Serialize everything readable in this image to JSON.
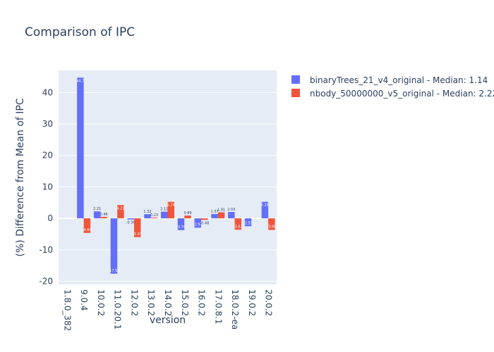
{
  "chart_data": {
    "type": "bar",
    "title": "Comparison of IPC",
    "xlabel": "version",
    "ylabel": "(%) Difference from Mean of IPC",
    "ylim": [
      -21,
      47
    ],
    "yticks": [
      -20,
      -10,
      0,
      10,
      20,
      30,
      40
    ],
    "grid": true,
    "legend_position": "top-right",
    "categories": [
      "1.8.0_382",
      "9.0.4",
      "10.0.2",
      "11.0.20.1",
      "12.0.2",
      "13.0.2",
      "14.0.2",
      "15.0.2",
      "16.0.2",
      "17.0.8.1",
      "18.0.2-ea",
      "19.0.2",
      "20.0.2"
    ],
    "series": [
      {
        "name": "binaryTrees_21_v4_original - Median: 1.14",
        "color": "#636efa",
        "values": [
          null,
          44.7,
          2.21,
          -17.59,
          -0.36,
          1.32,
          2.11,
          -3.74,
          -2.97,
          1.37,
          2.03,
          -2.51,
          5.26
        ],
        "labels": [
          "",
          "44.7",
          "2.21",
          "-17.59",
          "-0.36",
          "1.32",
          "2.11",
          "-3.74",
          "-2.97",
          "1.37",
          "2.03",
          "-2.51",
          "5.26"
        ]
      },
      {
        "name": "nbody_50000000_v5_original - Median: 2.22",
        "color": "#ef553b",
        "values": [
          null,
          -4.64,
          0.46,
          4.21,
          -5.97,
          0.23,
          5.24,
          0.89,
          -0.48,
          1.91,
          -3.62,
          null,
          -3.68
        ],
        "labels": [
          "",
          "-4.64",
          "0.46",
          "4.21",
          "-5.97",
          "0.23",
          "5.24",
          "0.89",
          "-0.48",
          "1.91",
          "-3.62",
          "",
          "-3.68"
        ]
      }
    ]
  }
}
